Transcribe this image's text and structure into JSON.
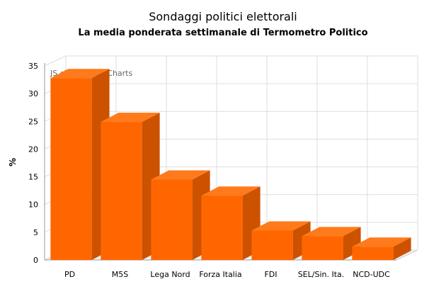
{
  "chart_data": {
    "type": "bar",
    "title": "Sondaggi politici elettorali",
    "subtitle": "La media ponderata settimanale di Termometro Politico",
    "ylabel": "%",
    "xlabel": "",
    "ylim": [
      0,
      35
    ],
    "yticks": [
      0,
      5,
      10,
      15,
      20,
      25,
      30,
      35
    ],
    "categories": [
      "PD",
      "M5S",
      "Lega Nord",
      "Forza Italia",
      "FDI",
      "SEL/Sin. Ita.",
      "NCD-UDC"
    ],
    "values": [
      32.8,
      24.9,
      14.5,
      11.6,
      5.3,
      4.3,
      2.4
    ],
    "bar_color": "#FF6600",
    "grid": true,
    "legend": "none",
    "watermark": "JS chart by amCharts"
  }
}
